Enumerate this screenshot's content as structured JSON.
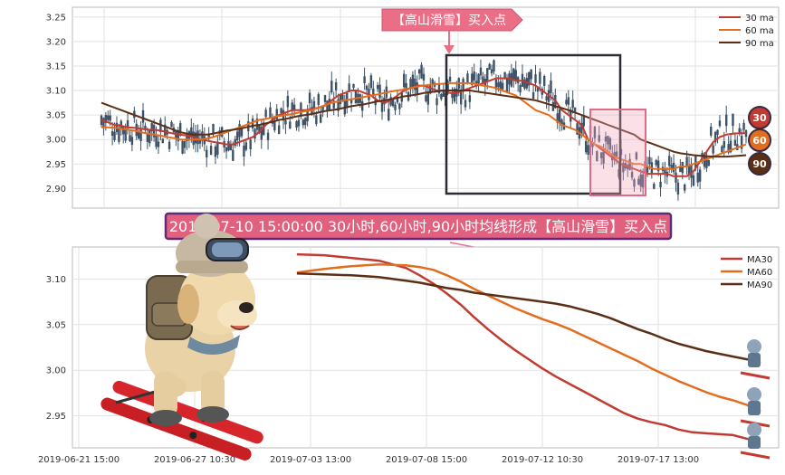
{
  "chart_data": [
    {
      "type": "candlestick",
      "title": "",
      "xlabel": "",
      "ylabel": "",
      "ylim": [
        2.86,
        3.27
      ],
      "yticks": [
        2.9,
        2.95,
        3.0,
        3.05,
        3.1,
        3.15,
        3.2,
        3.25
      ],
      "grid": true,
      "legend_position": "top-right",
      "series": [
        {
          "name": "30 ma",
          "color": "#c23b33",
          "values": [
            3.04,
            3.035,
            3.03,
            3.028,
            3.025,
            3.024,
            3.022,
            3.02,
            3.02,
            3.018,
            3.015,
            3.012,
            3.01,
            3.008,
            3.005,
            3.0,
            2.998,
            2.995,
            2.993,
            2.99,
            2.99,
            2.995,
            3.0,
            3.005,
            3.015,
            3.03,
            3.04,
            3.05,
            3.055,
            3.06,
            3.06,
            3.06,
            3.062,
            3.065,
            3.07,
            3.08,
            3.09,
            3.095,
            3.1,
            3.1,
            3.095,
            3.09,
            3.08,
            3.075,
            3.08,
            3.09,
            3.1,
            3.105,
            3.11,
            3.11,
            3.105,
            3.1,
            3.1,
            3.095,
            3.095,
            3.1,
            3.105,
            3.11,
            3.115,
            3.12,
            3.125,
            3.125,
            3.125,
            3.12,
            3.12,
            3.115,
            3.11,
            3.1,
            3.09,
            3.08,
            3.06,
            3.05,
            3.04,
            3.03,
            3.0,
            2.99,
            2.98,
            2.97,
            2.96,
            2.95,
            2.945,
            2.94,
            2.935,
            2.93,
            2.93,
            2.93,
            2.93,
            2.925,
            2.925,
            2.925,
            2.935,
            2.955,
            2.975,
            2.995,
            3.005,
            3.01,
            3.012,
            3.013,
            3.013
          ]
        },
        {
          "name": "60 ma",
          "color": "#e36d1e",
          "values": [
            3.025,
            3.025,
            3.024,
            3.022,
            3.02,
            3.018,
            3.015,
            3.012,
            3.01,
            3.008,
            3.005,
            3.003,
            3.0,
            3.0,
            3.0,
            3.0,
            3.002,
            3.005,
            3.01,
            3.015,
            3.02,
            3.025,
            3.03,
            3.035,
            3.04,
            3.042,
            3.045,
            3.048,
            3.05,
            3.052,
            3.055,
            3.058,
            3.06,
            3.065,
            3.07,
            3.075,
            3.078,
            3.08,
            3.082,
            3.085,
            3.087,
            3.09,
            3.092,
            3.095,
            3.098,
            3.1,
            3.102,
            3.105,
            3.108,
            3.11,
            3.112,
            3.113,
            3.114,
            3.115,
            3.115,
            3.115,
            3.115,
            3.113,
            3.11,
            3.108,
            3.105,
            3.1,
            3.095,
            3.09,
            3.08,
            3.07,
            3.06,
            3.055,
            3.05,
            3.04,
            3.03,
            3.025,
            3.02,
            3.01,
            3.0,
            2.99,
            2.985,
            2.975,
            2.965,
            2.96,
            2.955,
            2.95,
            2.95,
            2.945,
            2.94,
            2.94,
            2.94,
            2.94,
            2.945,
            2.945,
            2.95,
            2.955,
            2.96,
            2.965,
            2.97,
            2.975,
            2.98,
            2.985,
            2.99
          ]
        },
        {
          "name": "90 ma",
          "color": "#5a2f16",
          "values": [
            3.075,
            3.07,
            3.065,
            3.06,
            3.055,
            3.05,
            3.045,
            3.04,
            3.035,
            3.03,
            3.025,
            3.02,
            3.015,
            3.012,
            3.01,
            3.01,
            3.01,
            3.012,
            3.015,
            3.018,
            3.02,
            3.022,
            3.025,
            3.028,
            3.03,
            3.033,
            3.036,
            3.04,
            3.042,
            3.045,
            3.048,
            3.05,
            3.052,
            3.055,
            3.058,
            3.06,
            3.062,
            3.065,
            3.068,
            3.07,
            3.072,
            3.075,
            3.078,
            3.08,
            3.082,
            3.085,
            3.088,
            3.09,
            3.092,
            3.095,
            3.097,
            3.098,
            3.1,
            3.1,
            3.1,
            3.1,
            3.1,
            3.098,
            3.096,
            3.094,
            3.092,
            3.09,
            3.088,
            3.086,
            3.084,
            3.082,
            3.08,
            3.076,
            3.072,
            3.068,
            3.064,
            3.06,
            3.055,
            3.05,
            3.045,
            3.04,
            3.035,
            3.03,
            3.025,
            3.02,
            3.015,
            3.01,
            3.0,
            2.995,
            2.99,
            2.985,
            2.98,
            2.975,
            2.972,
            2.97,
            2.968,
            2.967,
            2.966,
            2.965,
            2.965,
            2.965,
            2.966,
            2.967,
            2.968
          ]
        }
      ],
      "annotations": {
        "buy_label": "【高山滑雪】买入点",
        "badges": [
          "30",
          "60",
          "90"
        ]
      }
    },
    {
      "type": "line",
      "title": "",
      "xlabel": "",
      "ylabel": "",
      "ylim": [
        2.915,
        3.135
      ],
      "yticks": [
        2.95,
        3.0,
        3.05,
        3.1
      ],
      "grid": true,
      "legend_position": "top-right",
      "x_ticks": [
        "2019-06-21 15:00",
        "2019-06-27 10:30",
        "2019-07-03 13:00",
        "2019-07-08 15:00",
        "2019-07-12 10:30",
        "2019-07-17 13:00"
      ],
      "x_tick_pos": [
        0,
        4.25,
        8.5,
        12.75,
        17.0,
        21.25
      ],
      "series": [
        {
          "name": "MA30",
          "color": "#c23b33",
          "x": [
            8.0,
            9.0,
            10.0,
            11.0,
            12.0,
            12.5,
            13.0,
            13.5,
            14.0,
            14.5,
            15.0,
            15.5,
            16.0,
            16.5,
            17.0,
            17.5,
            18.0,
            18.5,
            19.0,
            19.5,
            20.0,
            20.5,
            21.0,
            21.5,
            22.0,
            22.5,
            23.0,
            23.5,
            24.0,
            24.5,
            25.0
          ],
          "values": [
            3.127,
            3.126,
            3.123,
            3.12,
            3.112,
            3.104,
            3.095,
            3.084,
            3.072,
            3.058,
            3.045,
            3.033,
            3.022,
            3.012,
            3.002,
            2.993,
            2.985,
            2.977,
            2.969,
            2.961,
            2.953,
            2.947,
            2.943,
            2.94,
            2.935,
            2.932,
            2.931,
            2.93,
            2.929,
            2.925,
            2.921
          ]
        },
        {
          "name": "MA60",
          "color": "#e36d1e",
          "x": [
            8.0,
            9.0,
            10.0,
            11.0,
            12.0,
            12.5,
            13.0,
            13.5,
            14.0,
            14.5,
            15.0,
            15.5,
            16.0,
            16.5,
            17.0,
            17.5,
            18.0,
            18.5,
            19.0,
            19.5,
            20.0,
            20.5,
            21.0,
            21.5,
            22.0,
            22.5,
            23.0,
            23.5,
            24.0,
            24.5,
            25.0
          ],
          "values": [
            3.107,
            3.111,
            3.114,
            3.116,
            3.115,
            3.113,
            3.11,
            3.104,
            3.097,
            3.089,
            3.082,
            3.075,
            3.068,
            3.062,
            3.056,
            3.051,
            3.045,
            3.038,
            3.031,
            3.024,
            3.017,
            3.01,
            3.002,
            2.995,
            2.988,
            2.982,
            2.976,
            2.971,
            2.967,
            2.962,
            2.955
          ]
        },
        {
          "name": "MA90",
          "color": "#5a2f16",
          "x": [
            8.0,
            9.0,
            10.0,
            11.0,
            12.0,
            12.5,
            13.0,
            13.5,
            14.0,
            14.5,
            15.0,
            15.5,
            16.0,
            16.5,
            17.0,
            17.5,
            18.0,
            18.5,
            19.0,
            19.5,
            20.0,
            20.5,
            21.0,
            21.5,
            22.0,
            22.5,
            23.0,
            23.5,
            24.0,
            24.5,
            25.0
          ],
          "values": [
            3.106,
            3.105,
            3.104,
            3.102,
            3.098,
            3.096,
            3.093,
            3.09,
            3.088,
            3.085,
            3.083,
            3.081,
            3.079,
            3.077,
            3.075,
            3.073,
            3.07,
            3.066,
            3.062,
            3.057,
            3.051,
            3.045,
            3.04,
            3.034,
            3.029,
            3.025,
            3.021,
            3.018,
            3.015,
            3.012,
            3.008
          ]
        }
      ],
      "annotations": {
        "banner": "2019-07-10 15:00:00 30小时,60小时,90小时均线形成【高山滑雪】买入点"
      }
    }
  ]
}
